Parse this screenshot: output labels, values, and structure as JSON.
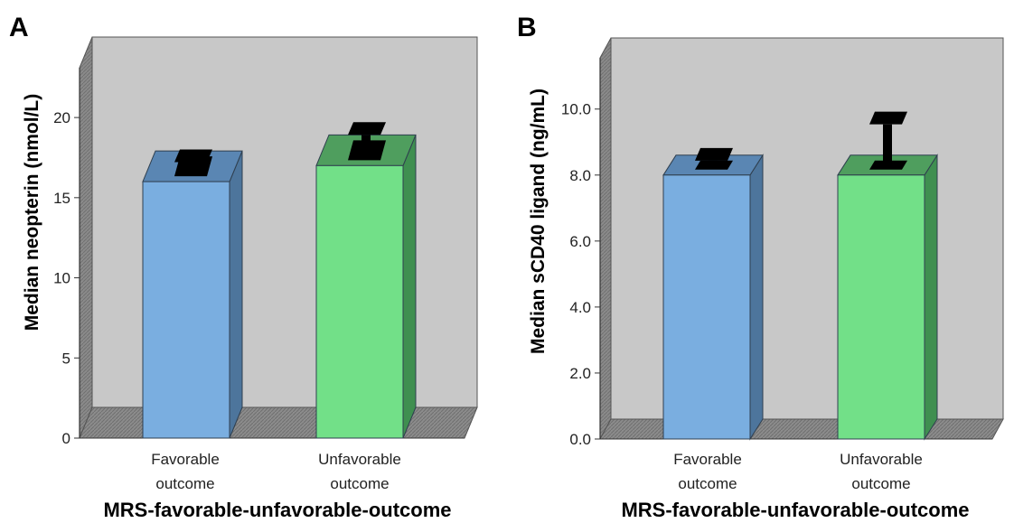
{
  "chart_data": [
    {
      "type": "bar",
      "panel": "A",
      "categories": [
        [
          "Favorable",
          "outcome"
        ],
        [
          "Unfavorable",
          "outcome"
        ]
      ],
      "values": [
        16.0,
        17.0
      ],
      "error_upper": [
        16.6,
        18.3
      ],
      "ylabel": "Median neopterin (nmol/L)",
      "xlabel": "MRS-favorable-unfavorable-outcome",
      "ylim": [
        0,
        23.5
      ],
      "yticks": [
        "0",
        "5",
        "10",
        "15",
        "20"
      ],
      "ytick_values": [
        0,
        5,
        10,
        15,
        20
      ],
      "grid": false,
      "bar_colors": [
        "#7aaee0",
        "#72e088"
      ],
      "bar_side_colors": [
        "#4d759c",
        "#3f8f50"
      ],
      "bar_top_colors": [
        "#5a86b3",
        "#4f9e5e"
      ]
    },
    {
      "type": "bar",
      "panel": "B",
      "categories": [
        [
          "Favorable",
          "outcome"
        ],
        [
          "Unfavorable",
          "outcome"
        ]
      ],
      "values": [
        8.0,
        8.0
      ],
      "error_upper": [
        8.3,
        9.4
      ],
      "ylabel": "Median sCD40 ligand (ng/mL)",
      "xlabel": "MRS-favorable-unfavorable-outcome",
      "ylim": [
        0,
        11.8
      ],
      "yticks": [
        "0.0",
        "2.0",
        "4.0",
        "6.0",
        "8.0",
        "10.0"
      ],
      "ytick_values": [
        0,
        2,
        4,
        6,
        8,
        10
      ],
      "grid": false,
      "bar_colors": [
        "#7aaee0",
        "#72e088"
      ],
      "bar_side_colors": [
        "#4d759c",
        "#3f8f50"
      ],
      "bar_top_colors": [
        "#5a86b3",
        "#4f9e5e"
      ]
    }
  ],
  "colors": {
    "wall": "#c8c8c8",
    "wall_side": "#8a8a8a",
    "floor": "#8c8c8c",
    "error_bar": "#000000"
  }
}
